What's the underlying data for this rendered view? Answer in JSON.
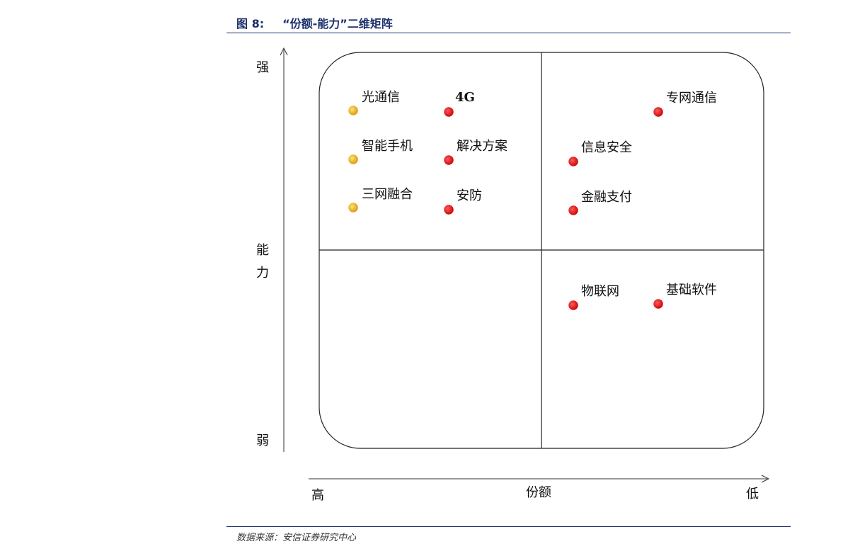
{
  "header": {
    "figure_number": "图 8:",
    "title": "“份额-能力”二维矩阵"
  },
  "footer": {
    "source": "数据来源：安信证券研究中心"
  },
  "axes": {
    "y_label_chars": [
      "能",
      "力"
    ],
    "y_top": "强",
    "y_bottom": "弱",
    "x_label": "份额",
    "x_left": "高",
    "x_right": "低"
  },
  "colors": {
    "accent": "#1b2f6b",
    "dot_yellow": "#e8a800",
    "dot_red": "#e00000"
  },
  "quadrants": {
    "top_left": {
      "items": [
        {
          "name": "光通信",
          "color": "yellow"
        },
        {
          "name": "4G",
          "color": "red"
        },
        {
          "name": "智能手机",
          "color": "yellow"
        },
        {
          "name": "解决方案",
          "color": "red"
        },
        {
          "name": "三网融合",
          "color": "yellow"
        },
        {
          "name": "安防",
          "color": "red"
        }
      ]
    },
    "top_right": {
      "items": [
        {
          "name": "专网通信",
          "color": "red"
        },
        {
          "name": "信息安全",
          "color": "red"
        },
        {
          "name": "金融支付",
          "color": "red"
        }
      ]
    },
    "bottom_right": {
      "items": [
        {
          "name": "物联网",
          "color": "red"
        },
        {
          "name": "基础软件",
          "color": "red"
        }
      ]
    }
  }
}
